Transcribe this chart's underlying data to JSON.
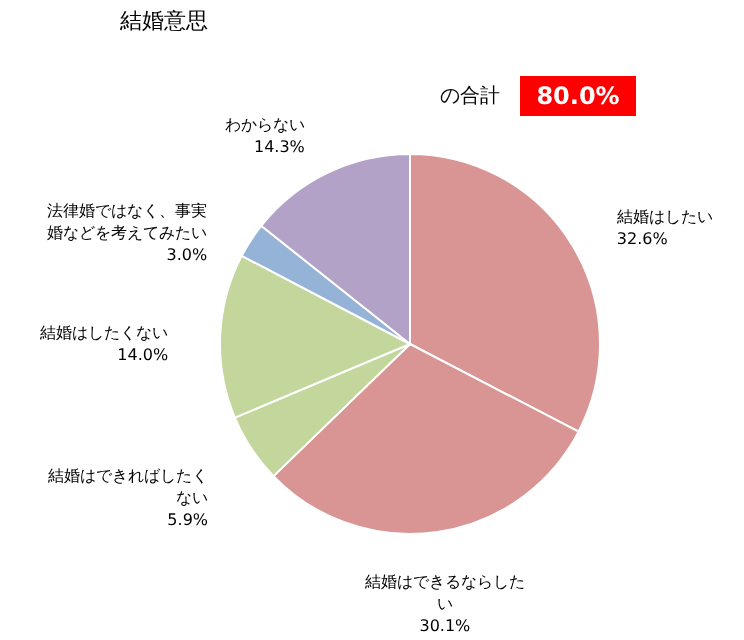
{
  "chart_data": {
    "type": "pie",
    "title": "結婚意思",
    "categories": [
      "結婚はしたい",
      "結婚はできるならしたい",
      "結婚はできればしたくない",
      "結婚はしたくない",
      "法律婚ではなく、事実婚などを考えてみたい",
      "わからない"
    ],
    "values": [
      32.6,
      30.1,
      5.9,
      14.0,
      3.0,
      14.3
    ],
    "value_labels": [
      "32.6%",
      "30.1%",
      "5.9%",
      "14.0%",
      "3.0%",
      "14.3%"
    ],
    "colors": [
      "#d99594",
      "#d99594",
      "#c3d69b",
      "#c3d69b",
      "#95b3d7",
      "#b2a2c7"
    ],
    "annotations": [
      "の合計",
      "80.0%"
    ],
    "legend": false
  }
}
